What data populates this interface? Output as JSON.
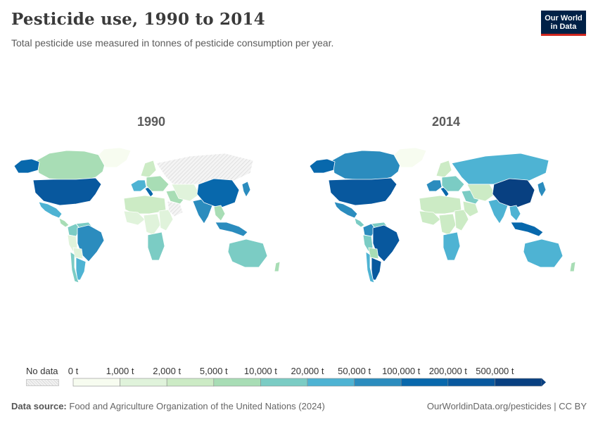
{
  "header": {
    "title": "Pesticide use, 1990 to 2014",
    "subtitle": "Total pesticide use measured in tonnes of pesticide consumption per year.",
    "logo_line1": "Our World",
    "logo_line2": "in Data"
  },
  "maps": [
    {
      "year": "1990",
      "regions": [
        {
          "name": "Canada",
          "bin": 3
        },
        {
          "name": "Alaska",
          "bin": 7
        },
        {
          "name": "United States",
          "bin": 8
        },
        {
          "name": "Mexico",
          "bin": 5
        },
        {
          "name": "Central America",
          "bin": 3
        },
        {
          "name": "Greenland",
          "bin": 0
        },
        {
          "name": "Colombia",
          "bin": 4
        },
        {
          "name": "Venezuela",
          "bin": 4
        },
        {
          "name": "Peru",
          "bin": 1
        },
        {
          "name": "Brazil",
          "bin": 6
        },
        {
          "name": "Bolivia",
          "bin": 1
        },
        {
          "name": "Argentina",
          "bin": 5
        },
        {
          "name": "Chile",
          "bin": 4
        },
        {
          "name": "Western Europe",
          "bin": 5
        },
        {
          "name": "Italy",
          "bin": 7
        },
        {
          "name": "Scandinavia",
          "bin": 2
        },
        {
          "name": "Eastern Europe",
          "bin": 3
        },
        {
          "name": "Russia",
          "bin": -1
        },
        {
          "name": "North Africa",
          "bin": 2
        },
        {
          "name": "West Africa",
          "bin": 1
        },
        {
          "name": "Central Africa",
          "bin": 1
        },
        {
          "name": "East Africa",
          "bin": 1
        },
        {
          "name": "Southern Africa",
          "bin": 4
        },
        {
          "name": "Middle East",
          "bin": 3
        },
        {
          "name": "Saudi Arabia",
          "bin": -1
        },
        {
          "name": "Central Asia",
          "bin": 1
        },
        {
          "name": "India",
          "bin": 6
        },
        {
          "name": "China",
          "bin": 7
        },
        {
          "name": "Japan",
          "bin": 6
        },
        {
          "name": "Southeast Asia",
          "bin": 3
        },
        {
          "name": "Indonesia",
          "bin": 6
        },
        {
          "name": "Australia",
          "bin": 4
        },
        {
          "name": "New Zealand",
          "bin": 3
        }
      ]
    },
    {
      "year": "2014",
      "regions": [
        {
          "name": "Canada",
          "bin": 6
        },
        {
          "name": "Alaska",
          "bin": 7
        },
        {
          "name": "United States",
          "bin": 8
        },
        {
          "name": "Mexico",
          "bin": 6
        },
        {
          "name": "Central America",
          "bin": 4
        },
        {
          "name": "Greenland",
          "bin": 0
        },
        {
          "name": "Colombia",
          "bin": 6
        },
        {
          "name": "Venezuela",
          "bin": 4
        },
        {
          "name": "Peru",
          "bin": 4
        },
        {
          "name": "Brazil",
          "bin": 8
        },
        {
          "name": "Bolivia",
          "bin": 3
        },
        {
          "name": "Argentina",
          "bin": 8
        },
        {
          "name": "Chile",
          "bin": 5
        },
        {
          "name": "Western Europe",
          "bin": 6
        },
        {
          "name": "Italy",
          "bin": 7
        },
        {
          "name": "Scandinavia",
          "bin": 2
        },
        {
          "name": "Eastern Europe",
          "bin": 4
        },
        {
          "name": "Russia",
          "bin": 5
        },
        {
          "name": "North Africa",
          "bin": 2
        },
        {
          "name": "West Africa",
          "bin": 2
        },
        {
          "name": "Central Africa",
          "bin": 2
        },
        {
          "name": "East Africa",
          "bin": 2
        },
        {
          "name": "Southern Africa",
          "bin": 5
        },
        {
          "name": "Middle East",
          "bin": 4
        },
        {
          "name": "Saudi Arabia",
          "bin": 2
        },
        {
          "name": "Central Asia",
          "bin": 2
        },
        {
          "name": "India",
          "bin": 5
        },
        {
          "name": "China",
          "bin": 9
        },
        {
          "name": "Japan",
          "bin": 6
        },
        {
          "name": "Southeast Asia",
          "bin": 5
        },
        {
          "name": "Indonesia",
          "bin": 7
        },
        {
          "name": "Australia",
          "bin": 5
        },
        {
          "name": "New Zealand",
          "bin": 3
        }
      ]
    }
  ],
  "legend": {
    "no_data_label": "No data",
    "no_data_color": "#e6e6e6",
    "labels": [
      "0 t",
      "1,000 t",
      "2,000 t",
      "5,000 t",
      "10,000 t",
      "20,000 t",
      "50,000 t",
      "100,000 t",
      "200,000 t",
      "500,000 t"
    ],
    "colors": [
      "#f7fcf0",
      "#e0f3db",
      "#ccebc5",
      "#a8ddb5",
      "#7bccc4",
      "#4eb3d3",
      "#2b8cbe",
      "#0868ac",
      "#08589e",
      "#084081"
    ]
  },
  "footer": {
    "source_label": "Data source:",
    "source_text": "Food and Agriculture Organization of the United Nations (2024)",
    "credit": "OurWorldinData.org/pesticides | CC BY"
  }
}
